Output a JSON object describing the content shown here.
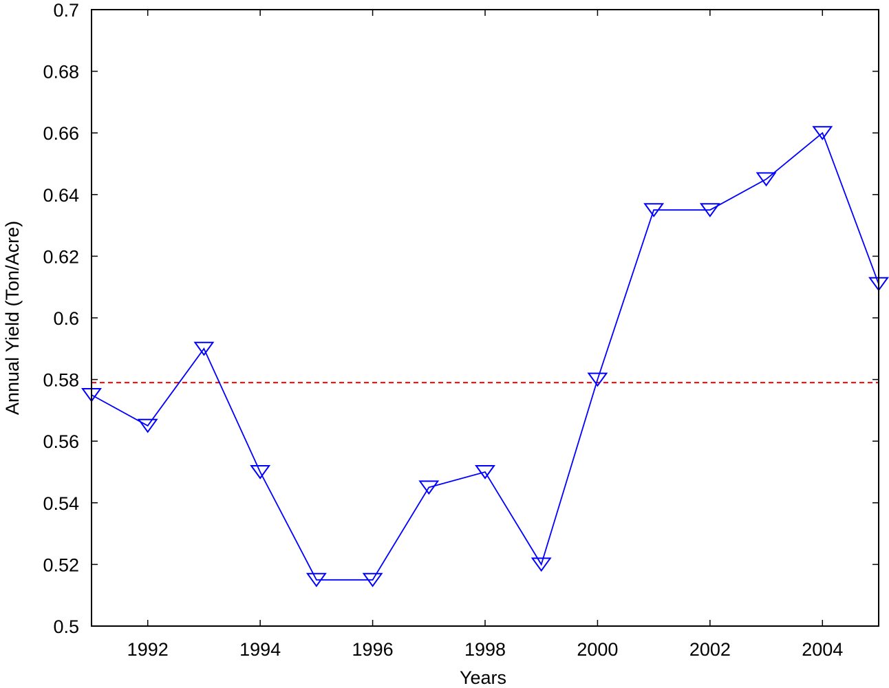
{
  "chart_data": {
    "type": "line",
    "title": "",
    "xlabel": "Years",
    "ylabel": "Annual Yield (Ton/Acre)",
    "xlim": [
      1991,
      2005
    ],
    "ylim": [
      0.5,
      0.7
    ],
    "x_ticks": [
      1992,
      1994,
      1996,
      1998,
      2000,
      2002,
      2004
    ],
    "x_tick_labels": [
      "1992",
      "1994",
      "1996",
      "1998",
      "2000",
      "2002",
      "2004"
    ],
    "y_ticks": [
      0.5,
      0.52,
      0.54,
      0.56,
      0.58,
      0.6,
      0.62,
      0.64,
      0.66,
      0.68,
      0.7
    ],
    "y_tick_labels": [
      "0.5",
      "0.52",
      "0.54",
      "0.56",
      "0.58",
      "0.6",
      "0.62",
      "0.64",
      "0.66",
      "0.68",
      "0.7"
    ],
    "grid": false,
    "series": [
      {
        "color": "#0000ff",
        "marker": "triangle-down",
        "x": [
          1991,
          1992,
          1993,
          1994,
          1995,
          1996,
          1997,
          1998,
          1999,
          2000,
          2001,
          2002,
          2003,
          2004,
          2005
        ],
        "y": [
          0.575,
          0.565,
          0.59,
          0.55,
          0.515,
          0.515,
          0.545,
          0.55,
          0.52,
          0.58,
          0.635,
          0.635,
          0.645,
          0.66,
          0.611
        ]
      }
    ],
    "reference_line": {
      "y": 0.579,
      "color": "#ff0000",
      "style": "dashed"
    }
  }
}
